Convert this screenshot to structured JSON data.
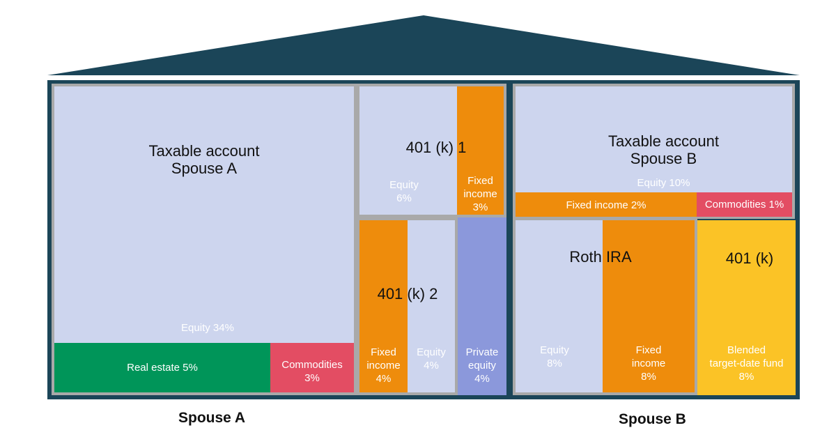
{
  "colors": {
    "frame": "#1b4558",
    "equity": "#cdd5ee",
    "fixed_income": "#ee8c0c",
    "commodities": "#e34d63",
    "real_estate": "#009559",
    "private_equity": "#8b98db",
    "blended": "#fbc326",
    "divider": "#a9a9a9"
  },
  "spouse_a": {
    "footer": "Spouse A",
    "taxable": {
      "title_line1": "Taxable account",
      "title_line2": "Spouse A",
      "equity": "Equity 34%",
      "real_estate": "Real estate 5%",
      "commodities_line1": "Commodities",
      "commodities_line2": "3%"
    },
    "k401_1": {
      "title": "401 (k) 1",
      "equity_line1": "Equity",
      "equity_line2": "6%",
      "fixed_line1": "Fixed",
      "fixed_line2": "income",
      "fixed_line3": "3%"
    },
    "k401_2": {
      "title": "401 (k) 2",
      "fixed_line1": "Fixed",
      "fixed_line2": "income",
      "fixed_line3": "4%",
      "equity_line1": "Equity",
      "equity_line2": "4%"
    },
    "private_equity": {
      "line1": "Private",
      "line2": "equity",
      "line3": "4%"
    }
  },
  "spouse_b": {
    "footer": "Spouse B",
    "taxable": {
      "title_line1": "Taxable account",
      "title_line2": "Spouse B",
      "equity": "Equity 10%",
      "fixed": "Fixed income 2%",
      "commodities": "Commodities 1%"
    },
    "roth": {
      "title": "Roth IRA",
      "equity_line1": "Equity",
      "equity_line2": "8%",
      "fixed_line1": "Fixed",
      "fixed_line2": "income",
      "fixed_line3": "8%"
    },
    "k401": {
      "title": "401 (k)",
      "blended_line1": "Blended",
      "blended_line2": "target-date fund",
      "blended_line3": "8%"
    }
  }
}
